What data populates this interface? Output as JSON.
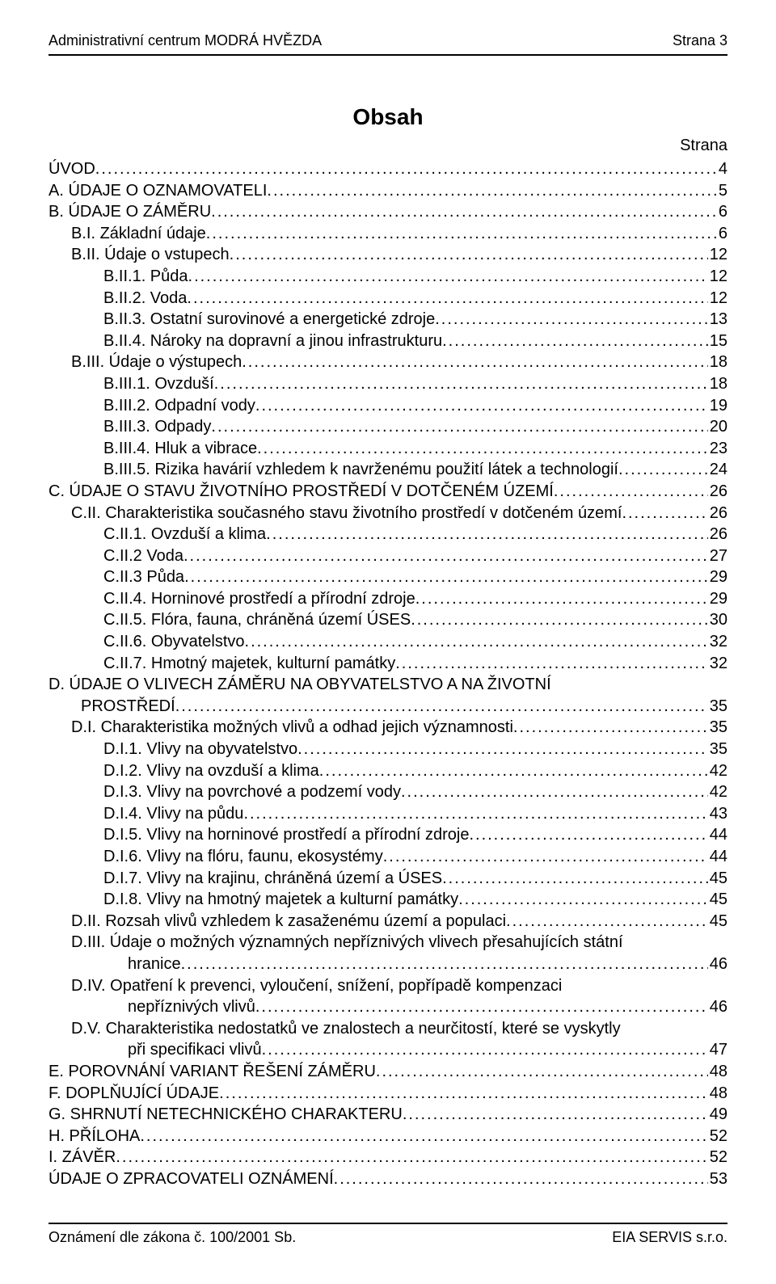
{
  "header": {
    "left": "Administrativní centrum MODRÁ HVĚZDA",
    "right": "Strana 3"
  },
  "title": "Obsah",
  "strana_label": "Strana",
  "toc": [
    {
      "indent": 0,
      "text": "ÚVOD",
      "page": "4"
    },
    {
      "indent": 0,
      "text": "A. ÚDAJE O OZNAMOVATELI",
      "page": "5"
    },
    {
      "indent": 0,
      "text": "B. ÚDAJE O ZÁMĚRU",
      "page": "6"
    },
    {
      "indent": 1,
      "text": "B.I. Základní údaje",
      "page": "6"
    },
    {
      "indent": 1,
      "text": "B.II. Údaje o vstupech",
      "page": "12"
    },
    {
      "indent": 2,
      "text": "B.II.1. Půda",
      "page": "12"
    },
    {
      "indent": 2,
      "text": "B.II.2. Voda",
      "page": "12"
    },
    {
      "indent": 2,
      "text": "B.II.3. Ostatní surovinové a energetické zdroje",
      "page": "13"
    },
    {
      "indent": 2,
      "text": "B.II.4. Nároky na dopravní a jinou infrastrukturu",
      "page": "15"
    },
    {
      "indent": 1,
      "text": "B.III. Údaje o výstupech",
      "page": "18"
    },
    {
      "indent": 2,
      "text": "B.III.1. Ovzduší",
      "page": "18"
    },
    {
      "indent": 2,
      "text": "B.III.2. Odpadní vody",
      "page": "19"
    },
    {
      "indent": 2,
      "text": "B.III.3. Odpady",
      "page": "20"
    },
    {
      "indent": 2,
      "text": "B.III.4. Hluk a vibrace",
      "page": "23"
    },
    {
      "indent": 2,
      "text": "B.III.5. Rizika havárií vzhledem k navrženému použití látek a technologií",
      "page": "24"
    },
    {
      "indent": 0,
      "text": "C.   ÚDAJE O STAVU ŽIVOTNÍHO PROSTŘEDÍ  V DOTČENÉM ÚZEMÍ",
      "page": "26"
    },
    {
      "indent": 1,
      "text": "C.II. Charakteristika současného stavu životního prostředí v dotčeném území",
      "page": "26"
    },
    {
      "indent": 2,
      "text": "C.II.1. Ovzduší a klima",
      "page": "26"
    },
    {
      "indent": 2,
      "text": "C.II.2 Voda",
      "page": "27"
    },
    {
      "indent": 2,
      "text": "C.II.3 Půda",
      "page": "29"
    },
    {
      "indent": 2,
      "text": "C.II.4. Horninové prostředí a přírodní zdroje",
      "page": "29"
    },
    {
      "indent": 2,
      "text": "C.II.5. Flóra, fauna, chráněná území ÚSES",
      "page": "30"
    },
    {
      "indent": 2,
      "text": "C.II.6. Obyvatelstvo",
      "page": "32"
    },
    {
      "indent": 2,
      "text": "C.II.7. Hmotný majetek, kulturní památky",
      "page": "32"
    },
    {
      "indent": 0,
      "text": "D.   ÚDAJE O VLIVECH ZÁMĚRU NA  OBYVATELSTVO A NA ŽIVOTNÍ",
      "cont": "PROSTŘEDÍ",
      "page": "35"
    },
    {
      "indent": 1,
      "text": "D.I. Charakteristika možných vlivů a odhad jejich významnosti",
      "page": "35"
    },
    {
      "indent": 2,
      "text": "D.I.1. Vlivy na obyvatelstvo",
      "page": "35"
    },
    {
      "indent": 2,
      "text": "D.I.2. Vlivy na ovzduší a klima",
      "page": "42"
    },
    {
      "indent": 2,
      "text": "D.I.3. Vlivy na povrchové a podzemí vody",
      "page": "42"
    },
    {
      "indent": 2,
      "text": "D.I.4. Vlivy na půdu",
      "page": "43"
    },
    {
      "indent": 2,
      "text": "D.I.5. Vlivy na horninové prostředí a přírodní zdroje",
      "page": "44"
    },
    {
      "indent": 2,
      "text": "D.I.6. Vlivy na flóru, faunu, ekosystémy",
      "page": "44"
    },
    {
      "indent": 2,
      "text": "D.I.7. Vlivy na krajinu, chráněná území a ÚSES",
      "page": "45"
    },
    {
      "indent": 2,
      "text": "D.I.8. Vlivy na hmotný majetek a kulturní památky",
      "page": "45"
    },
    {
      "indent": 1,
      "text": "D.II.  Rozsah vlivů vzhledem k zasaženému území a populaci",
      "page": "45"
    },
    {
      "indent": 1,
      "text": "D.III.  Údaje o možných významných nepříznivých vlivech  přesahujících státní",
      "cont": "hranice",
      "page": "46",
      "cont_indent": 3
    },
    {
      "indent": 1,
      "text": "D.IV. Opatření k prevenci, vyloučení, snížení, popřípadě kompenzaci",
      "cont": "nepříznivých vlivů",
      "page": "46",
      "cont_indent": 3
    },
    {
      "indent": 1,
      "text": "D.V.  Charakteristika nedostatků ve znalostech a neurčitostí, které se vyskytly",
      "cont": "při specifikaci vlivů",
      "page": "47",
      "cont_indent": 3
    },
    {
      "indent": 0,
      "text": "E. POROVNÁNÍ VARIANT ŘEŠENÍ ZÁMĚRU",
      "page": "48"
    },
    {
      "indent": 0,
      "text": "F. DOPLŇUJÍCÍ ÚDAJE",
      "page": "48"
    },
    {
      "indent": 0,
      "text": "G. SHRNUTÍ NETECHNICKÉHO CHARAKTERU",
      "page": "49"
    },
    {
      "indent": 0,
      "text": "H. PŘÍLOHA",
      "page": "52"
    },
    {
      "indent": 0,
      "text": "I. ZÁVĚR",
      "page": "52"
    },
    {
      "indent": 0,
      "text": "ÚDAJE O ZPRACOVATELI OZNÁMENÍ",
      "page": "53"
    }
  ],
  "footer": {
    "left": "Oznámení dle zákona č. 100/2001 Sb.",
    "right": "EIA SERVIS s.r.o."
  }
}
